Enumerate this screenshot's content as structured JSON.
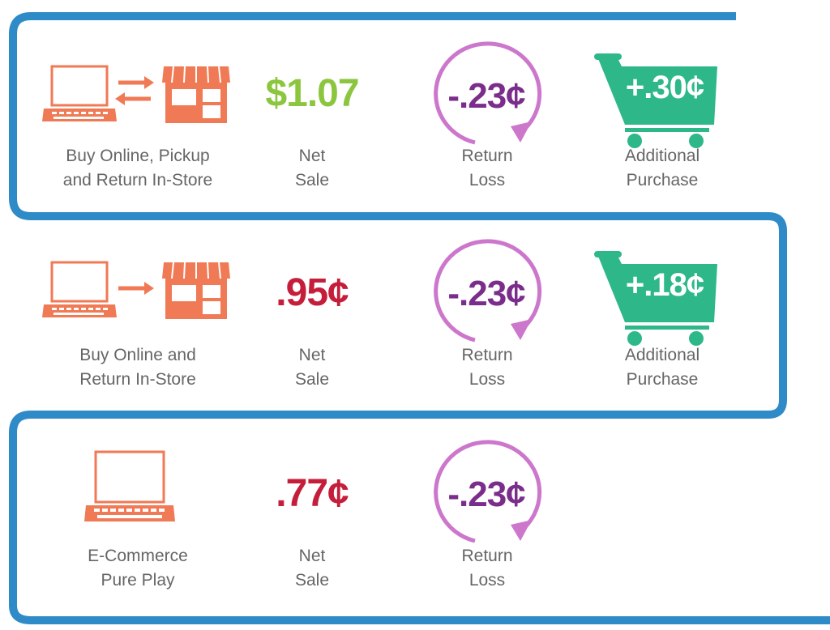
{
  "colors": {
    "frame": "#2e8bc7",
    "icon": "#f07a55",
    "net_positive": "#8cc63f",
    "net_negative": "#c41e3a",
    "return": "#7b2d8b",
    "return_arrow": "#cc77cc",
    "cart": "#2eb889",
    "label": "#666666"
  },
  "rows": [
    {
      "icon_name": "laptop-to-store-roundtrip-icon",
      "channel_line1": "Buy Online, Pickup",
      "channel_line2": "and Return In-Store",
      "net_value": "$1.07",
      "net_line1": "Net",
      "net_line2": "Sale",
      "return_value": "-.23¢",
      "return_line1": "Return",
      "return_line2": "Loss",
      "cart_value": "+.30¢",
      "cart_line1": "Additional",
      "cart_line2": "Purchase"
    },
    {
      "icon_name": "laptop-to-store-icon",
      "channel_line1": "Buy Online and",
      "channel_line2": "Return In-Store",
      "net_value": ".95¢",
      "net_line1": "Net",
      "net_line2": "Sale",
      "return_value": "-.23¢",
      "return_line1": "Return",
      "return_line2": "Loss",
      "cart_value": "+.18¢",
      "cart_line1": "Additional",
      "cart_line2": "Purchase"
    },
    {
      "icon_name": "laptop-icon",
      "channel_line1": "E-Commerce",
      "channel_line2": "Pure Play",
      "net_value": ".77¢",
      "net_line1": "Net",
      "net_line2": "Sale",
      "return_value": "-.23¢",
      "return_line1": "Return",
      "return_line2": "Loss"
    }
  ]
}
